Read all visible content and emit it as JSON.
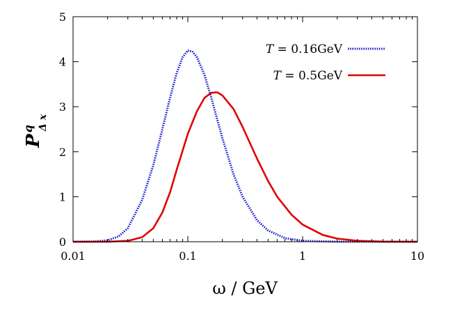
{
  "chart_data": {
    "type": "line",
    "x_scale": "log",
    "xlim": [
      0.01,
      10
    ],
    "ylim": [
      0,
      5
    ],
    "xlabel": "ω / GeV",
    "ylabel": {
      "main": "P",
      "sup": "q",
      "sub": "Δ x"
    },
    "x_ticks": [
      {
        "value": 0.01,
        "label": "0.01"
      },
      {
        "value": 0.1,
        "label": "0.1"
      },
      {
        "value": 1,
        "label": "1"
      },
      {
        "value": 10,
        "label": "10"
      }
    ],
    "y_ticks": [
      {
        "value": 0,
        "label": "0"
      },
      {
        "value": 1,
        "label": "1"
      },
      {
        "value": 2,
        "label": "2"
      },
      {
        "value": 3,
        "label": "3"
      },
      {
        "value": 4,
        "label": "4"
      },
      {
        "value": 5,
        "label": "5"
      }
    ],
    "grid": false,
    "legend_position": "top-right",
    "series": [
      {
        "name_italic": "T",
        "name_rest": " = 0.16GeV",
        "color": "#1f1fcf",
        "style": "dotted",
        "points": [
          [
            0.01,
            0.0
          ],
          [
            0.015,
            0.005
          ],
          [
            0.02,
            0.03
          ],
          [
            0.025,
            0.12
          ],
          [
            0.03,
            0.3
          ],
          [
            0.04,
            0.93
          ],
          [
            0.05,
            1.7
          ],
          [
            0.06,
            2.5
          ],
          [
            0.07,
            3.2
          ],
          [
            0.08,
            3.75
          ],
          [
            0.09,
            4.1
          ],
          [
            0.1,
            4.25
          ],
          [
            0.11,
            4.22
          ],
          [
            0.12,
            4.1
          ],
          [
            0.14,
            3.7
          ],
          [
            0.16,
            3.2
          ],
          [
            0.2,
            2.3
          ],
          [
            0.25,
            1.5
          ],
          [
            0.3,
            1.0
          ],
          [
            0.4,
            0.48
          ],
          [
            0.5,
            0.25
          ],
          [
            0.7,
            0.08
          ],
          [
            1.0,
            0.02
          ],
          [
            2.0,
            0.001
          ],
          [
            10,
            0.0
          ]
        ]
      },
      {
        "name_italic": "T",
        "name_rest": " = 0.5GeV",
        "color": "#e00000",
        "style": "solid",
        "points": [
          [
            0.01,
            0.0
          ],
          [
            0.02,
            0.0
          ],
          [
            0.03,
            0.02
          ],
          [
            0.04,
            0.1
          ],
          [
            0.05,
            0.3
          ],
          [
            0.06,
            0.65
          ],
          [
            0.07,
            1.1
          ],
          [
            0.08,
            1.6
          ],
          [
            0.1,
            2.4
          ],
          [
            0.12,
            2.9
          ],
          [
            0.14,
            3.2
          ],
          [
            0.16,
            3.31
          ],
          [
            0.18,
            3.32
          ],
          [
            0.2,
            3.25
          ],
          [
            0.25,
            2.95
          ],
          [
            0.3,
            2.55
          ],
          [
            0.4,
            1.85
          ],
          [
            0.5,
            1.35
          ],
          [
            0.6,
            1.0
          ],
          [
            0.8,
            0.6
          ],
          [
            1.0,
            0.38
          ],
          [
            1.5,
            0.15
          ],
          [
            2.0,
            0.07
          ],
          [
            3.0,
            0.02
          ],
          [
            5.0,
            0.003
          ],
          [
            10,
            0.0
          ]
        ]
      }
    ]
  }
}
